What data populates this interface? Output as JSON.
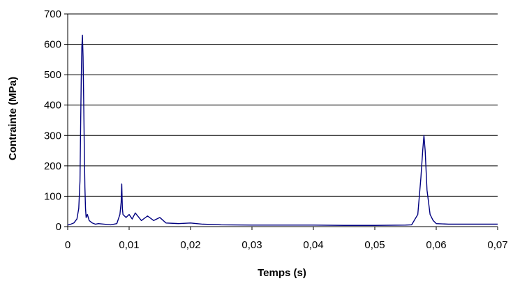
{
  "chart_data": {
    "type": "line",
    "title": "",
    "xlabel": "Temps (s)",
    "ylabel": "Contrainte (MPa)",
    "xlim": [
      0,
      0.07
    ],
    "ylim": [
      0,
      700
    ],
    "x_ticks": [
      {
        "value": 0,
        "label": "0"
      },
      {
        "value": 0.01,
        "label": "0,01"
      },
      {
        "value": 0.02,
        "label": "0,02"
      },
      {
        "value": 0.03,
        "label": "0,03"
      },
      {
        "value": 0.04,
        "label": "0,04"
      },
      {
        "value": 0.05,
        "label": "0,05"
      },
      {
        "value": 0.06,
        "label": "0,06"
      },
      {
        "value": 0.07,
        "label": "0,07"
      }
    ],
    "y_ticks": [
      {
        "value": 0,
        "label": "0"
      },
      {
        "value": 100,
        "label": "100"
      },
      {
        "value": 200,
        "label": "200"
      },
      {
        "value": 300,
        "label": "300"
      },
      {
        "value": 400,
        "label": "400"
      },
      {
        "value": 500,
        "label": "500"
      },
      {
        "value": 600,
        "label": "600"
      },
      {
        "value": 700,
        "label": "700"
      }
    ],
    "grid": "horizontal",
    "legend": "none",
    "series_color": "#000080",
    "series": [
      {
        "x": [
          0,
          0.0005,
          0.001,
          0.0015,
          0.0018,
          0.002,
          0.0021,
          0.0022,
          0.0023,
          0.0024,
          0.0025,
          0.0026,
          0.0027,
          0.0028,
          0.0029,
          0.003,
          0.0032,
          0.0035,
          0.004,
          0.0045,
          0.005,
          0.006,
          0.007,
          0.008,
          0.0085,
          0.0087,
          0.0088,
          0.0089,
          0.009,
          0.0095,
          0.01,
          0.0105,
          0.011,
          0.012,
          0.013,
          0.014,
          0.015,
          0.016,
          0.018,
          0.02,
          0.022,
          0.025,
          0.03,
          0.035,
          0.04,
          0.045,
          0.05,
          0.055,
          0.056,
          0.057,
          0.0575,
          0.0578,
          0.058,
          0.0582,
          0.0585,
          0.059,
          0.0595,
          0.06,
          0.062,
          0.065,
          0.07
        ],
        "y": [
          5,
          8,
          12,
          25,
          60,
          150,
          320,
          480,
          590,
          630,
          560,
          420,
          260,
          130,
          60,
          30,
          40,
          20,
          12,
          8,
          10,
          8,
          6,
          10,
          40,
          80,
          140,
          60,
          40,
          30,
          40,
          25,
          45,
          20,
          35,
          20,
          30,
          12,
          10,
          12,
          8,
          6,
          5,
          5,
          5,
          4,
          4,
          5,
          6,
          40,
          160,
          250,
          300,
          250,
          120,
          40,
          20,
          10,
          8,
          8,
          8
        ]
      }
    ]
  }
}
